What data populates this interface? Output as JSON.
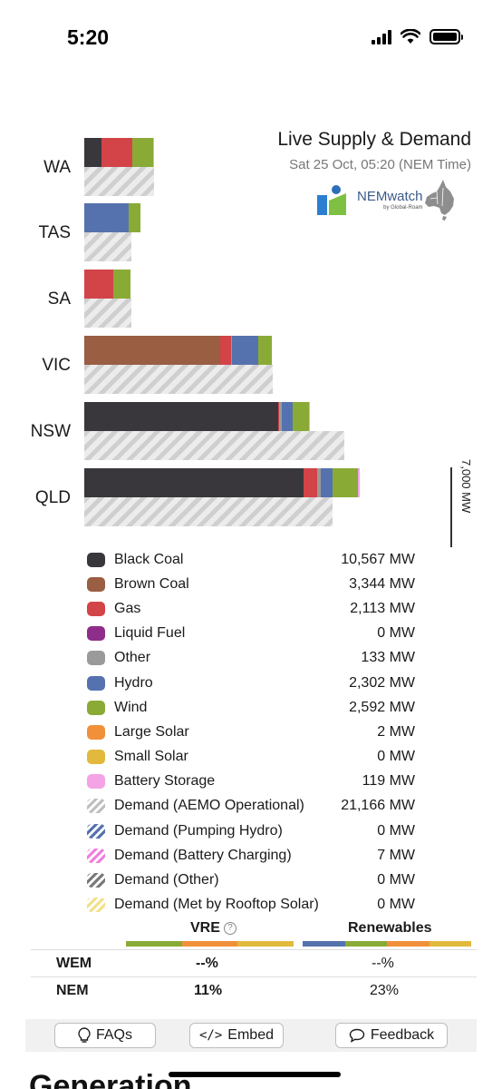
{
  "status_bar": {
    "time": "5:20"
  },
  "chart": {
    "title": "Live Supply & Demand",
    "date": "Sat 25 Oct, 05:20 (NEM Time)",
    "logo_text": "NEMwatch",
    "logo_sub": "by Global-Roam",
    "axis_label": "7,000 MW",
    "colors": {
      "black_coal": "#3a373c",
      "brown_coal": "#9a5e42",
      "gas": "#d24448",
      "liquid_fuel": "#8e2e8a",
      "other": "#9a9a9a",
      "hydro": "#5672ae",
      "wind": "#8aaa36",
      "large_solar": "#f0913a",
      "small_solar": "#e1b93c",
      "battery": "#f3a3e6"
    }
  },
  "chart_data": {
    "type": "bar",
    "orientation": "horizontal-stacked",
    "scale_mw": 7000,
    "regions": [
      {
        "name": "WA",
        "supply": [
          {
            "fuel": "black_coal",
            "mw": 328
          },
          {
            "fuel": "gas",
            "mw": 586
          },
          {
            "fuel": "wind",
            "mw": 406
          },
          {
            "fuel": "battery",
            "mw": 14
          }
        ],
        "demand_mw": 1334
      },
      {
        "name": "TAS",
        "supply": [
          {
            "fuel": "hydro",
            "mw": 850
          },
          {
            "fuel": "wind",
            "mw": 220
          }
        ],
        "demand_mw": 900
      },
      {
        "name": "SA",
        "supply": [
          {
            "fuel": "gas",
            "mw": 556
          },
          {
            "fuel": "wind",
            "mw": 328
          }
        ],
        "demand_mw": 900
      },
      {
        "name": "VIC",
        "supply": [
          {
            "fuel": "brown_coal",
            "mw": 2600
          },
          {
            "fuel": "gas",
            "mw": 200
          },
          {
            "fuel": "other",
            "mw": 20
          },
          {
            "fuel": "hydro",
            "mw": 500
          },
          {
            "fuel": "wind",
            "mw": 260
          }
        ],
        "demand_mw": 3600
      },
      {
        "name": "NSW",
        "supply": [
          {
            "fuel": "black_coal",
            "mw": 3700
          },
          {
            "fuel": "gas",
            "mw": 30
          },
          {
            "fuel": "other",
            "mw": 40
          },
          {
            "fuel": "hydro",
            "mw": 220
          },
          {
            "fuel": "wind",
            "mw": 300
          },
          {
            "fuel": "battery",
            "mw": 30
          }
        ],
        "demand_mw": 4980
      },
      {
        "name": "QLD",
        "supply": [
          {
            "fuel": "black_coal",
            "mw": 4200
          },
          {
            "fuel": "gas",
            "mw": 260
          },
          {
            "fuel": "other",
            "mw": 60
          },
          {
            "fuel": "hydro",
            "mw": 220
          },
          {
            "fuel": "wind",
            "mw": 500
          },
          {
            "fuel": "battery",
            "mw": 20
          }
        ],
        "demand_mw": 4750
      }
    ]
  },
  "legend": [
    {
      "name": "Black Coal",
      "value": "10,567 MW",
      "color": "#3a373c",
      "pattern": "solid"
    },
    {
      "name": "Brown Coal",
      "value": "3,344 MW",
      "color": "#9a5e42",
      "pattern": "solid"
    },
    {
      "name": "Gas",
      "value": "2,113 MW",
      "color": "#d24448",
      "pattern": "solid"
    },
    {
      "name": "Liquid Fuel",
      "value": "0 MW",
      "color": "#8e2e8a",
      "pattern": "solid"
    },
    {
      "name": "Other",
      "value": "133 MW",
      "color": "#9a9a9a",
      "pattern": "solid"
    },
    {
      "name": "Hydro",
      "value": "2,302 MW",
      "color": "#5672ae",
      "pattern": "solid"
    },
    {
      "name": "Wind",
      "value": "2,592 MW",
      "color": "#8aaa36",
      "pattern": "solid"
    },
    {
      "name": "Large Solar",
      "value": "2 MW",
      "color": "#f0913a",
      "pattern": "solid"
    },
    {
      "name": "Small Solar",
      "value": "0 MW",
      "color": "#e1b93c",
      "pattern": "solid"
    },
    {
      "name": "Battery Storage",
      "value": "119 MW",
      "color": "#f3a3e6",
      "pattern": "solid"
    },
    {
      "name": "Demand (AEMO Operational)",
      "value": "21,166 MW",
      "color": "#bfbfbf",
      "pattern": "hatch"
    },
    {
      "name": "Demand (Pumping Hydro)",
      "value": "0 MW",
      "color": "#5672ae",
      "pattern": "hatch"
    },
    {
      "name": "Demand (Battery Charging)",
      "value": "7 MW",
      "color": "#ee7fe0",
      "pattern": "hatch"
    },
    {
      "name": "Demand (Other)",
      "value": "0 MW",
      "color": "#7a7a7a",
      "pattern": "hatch"
    },
    {
      "name": "Demand (Met by Rooftop Solar)",
      "value": "0 MW",
      "color": "#f2e08a",
      "pattern": "hatch"
    }
  ],
  "vre_table": {
    "col_vre": "VRE",
    "col_renewables": "Renewables",
    "help_glyph": "?",
    "rows": [
      {
        "label": "WEM",
        "vre": "--%",
        "renewables": "--%"
      },
      {
        "label": "NEM",
        "vre": "11%",
        "renewables": "23%"
      }
    ]
  },
  "footer": {
    "faqs": "FAQs",
    "embed": "Embed",
    "embed_glyph": "</>",
    "feedback": "Feedback"
  },
  "next_section_heading": "Generation"
}
